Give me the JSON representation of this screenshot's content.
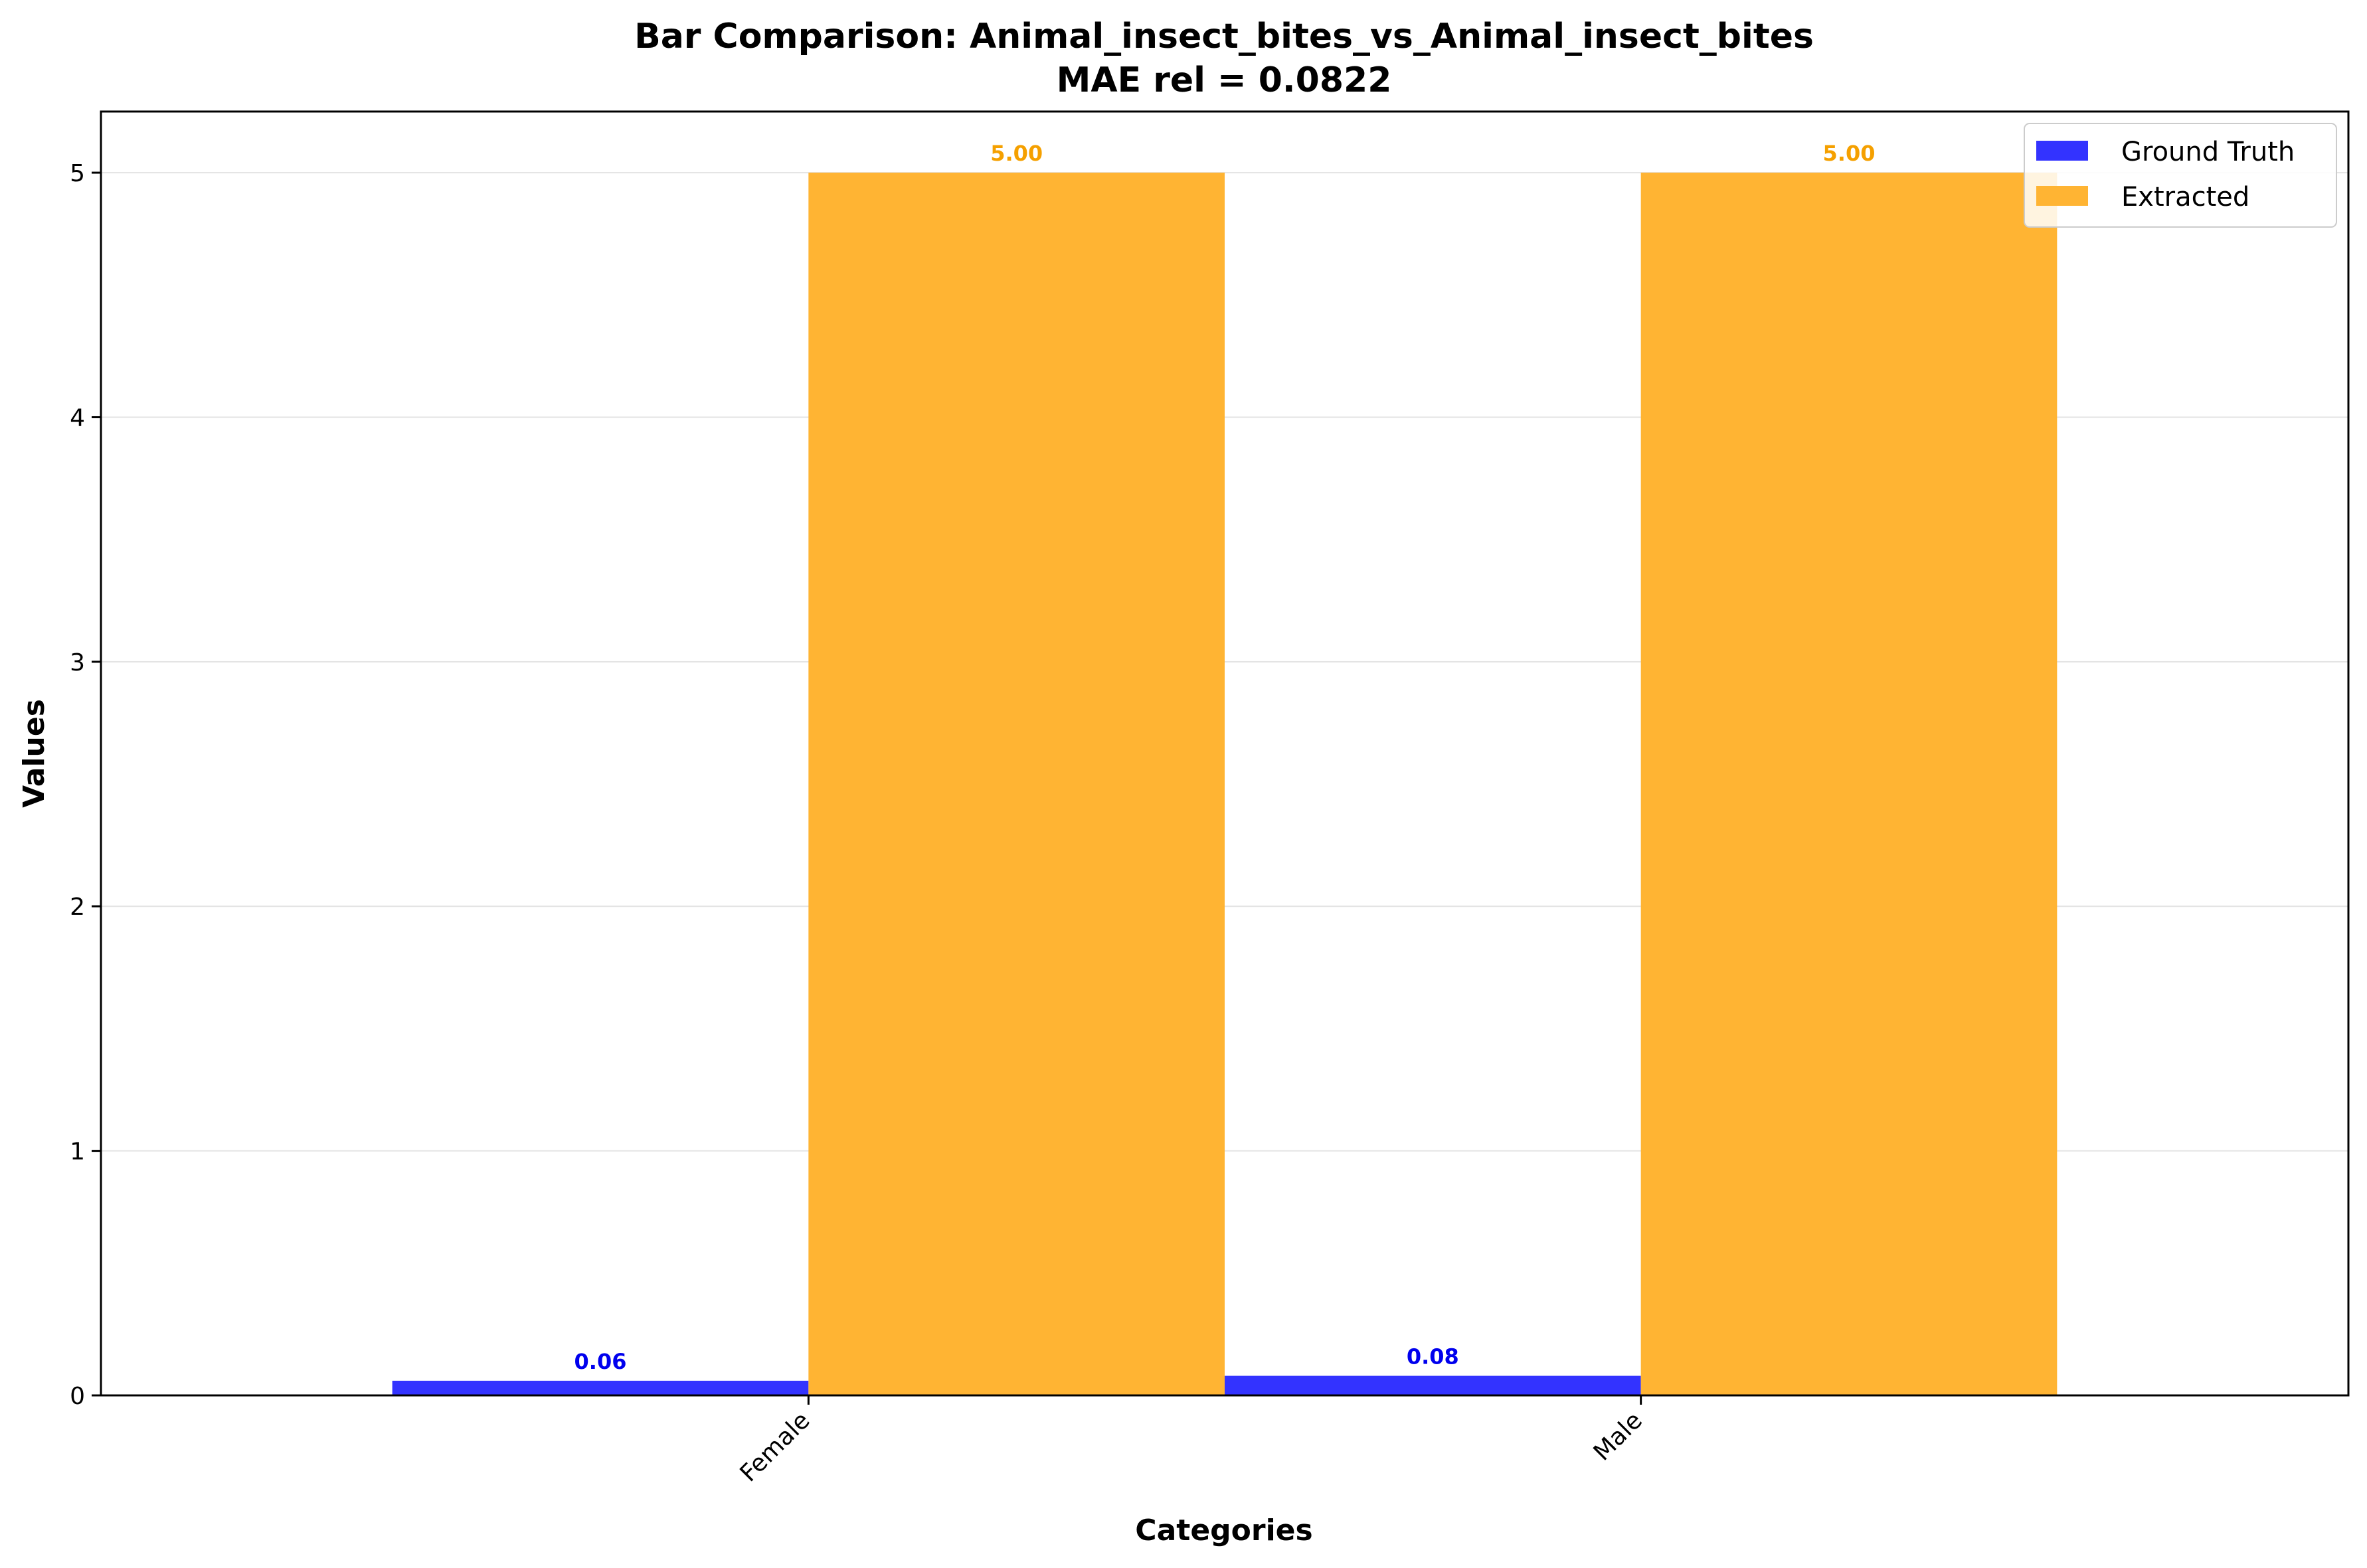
{
  "chart_data": {
    "type": "bar",
    "title_line1": "Bar Comparison: Animal_insect_bites_vs_Animal_insect_bites",
    "title_line2": "MAE rel = 0.0822",
    "xlabel": "Categories",
    "ylabel": "Values",
    "categories": [
      "Female",
      "Male"
    ],
    "ylim": [
      0,
      5.25
    ],
    "yticks": [
      0,
      1,
      2,
      3,
      4,
      5
    ],
    "grid": true,
    "legend_position": "top-right",
    "series": [
      {
        "name": "Ground Truth",
        "values": [
          0.06,
          0.08
        ],
        "labels": [
          "0.06",
          "0.08"
        ],
        "color": "#3333ff",
        "label_color": "#0000ee"
      },
      {
        "name": "Extracted",
        "values": [
          5.0,
          5.0
        ],
        "labels": [
          "5.00",
          "5.00"
        ],
        "color": "#ffb433",
        "label_color": "#f5a000"
      }
    ]
  }
}
